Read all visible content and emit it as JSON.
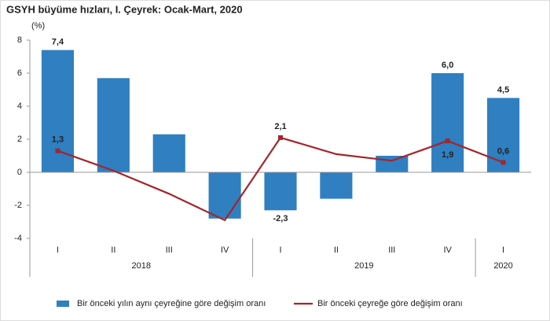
{
  "chart_data": {
    "type": "bar_line",
    "title": "GSYH büyüme hızları, I. Çeyrek: Ocak-Mart, 2020",
    "y_label": "(%)",
    "category_groups": [
      {
        "name": "2018",
        "categories": [
          "I",
          "II",
          "III",
          "IV"
        ]
      },
      {
        "name": "2019",
        "categories": [
          "I",
          "II",
          "III",
          "IV"
        ]
      },
      {
        "name": "2020",
        "categories": [
          "I"
        ]
      }
    ],
    "series": [
      {
        "name": "Bir önceki yılın aynı çeyreğine göre değişim oranı",
        "type": "bar",
        "color": "#2f7fc1",
        "values": [
          7.4,
          5.7,
          2.3,
          -2.8,
          -2.3,
          -1.6,
          1.0,
          6.0,
          4.5
        ],
        "value_labels": [
          "7,4",
          null,
          null,
          null,
          "-2,3",
          null,
          null,
          "6,0",
          "4,5"
        ]
      },
      {
        "name": "Bir önceki çeyreğe göre değişim oranı",
        "type": "line",
        "color": "#a3262b",
        "values": [
          1.3,
          0.1,
          -1.3,
          -2.9,
          2.1,
          1.1,
          0.7,
          1.9,
          0.6
        ],
        "value_labels": [
          "1,3",
          null,
          null,
          null,
          "2,1",
          null,
          null,
          "1,9",
          "0,6"
        ]
      }
    ],
    "ylim": [
      -4,
      8
    ],
    "yticks": [
      -4,
      -2,
      0,
      2,
      4,
      6,
      8
    ],
    "grid": false,
    "legend": "bottom"
  }
}
